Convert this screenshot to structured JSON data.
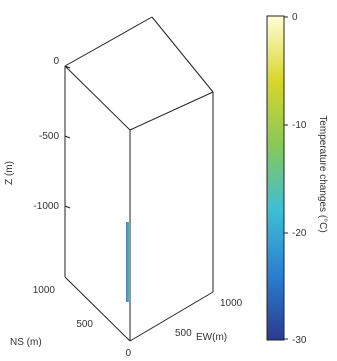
{
  "chart_data": {
    "type": "3d-box",
    "zlabel": "Z (m)",
    "ylabel": "NS (m)",
    "xlabel": "EW(m)",
    "z_ticks": [
      "0",
      "-500",
      "-1000"
    ],
    "ns_ticks": [
      "1000",
      "500",
      "0"
    ],
    "ew_ticks": [
      "500",
      "1000"
    ],
    "zlim": [
      -1500,
      0
    ],
    "ns_lim": [
      0,
      1000
    ],
    "ew_lim": [
      0,
      1000
    ],
    "colorbar": {
      "label": "Temperature changes (°C)",
      "ticks": [
        "0",
        "-10",
        "-20",
        "-30"
      ],
      "range": [
        -30,
        0
      ],
      "colors": [
        "#2b3a8f",
        "#2a7fd0",
        "#3ebed5",
        "#88c85a",
        "#d8d62a",
        "#ffffd8"
      ]
    },
    "feature": {
      "name": "temperature-anomaly",
      "z_range": [
        -1300,
        -1650
      ],
      "colors": [
        "#4a7bd6",
        "#6fbf7a"
      ]
    }
  }
}
